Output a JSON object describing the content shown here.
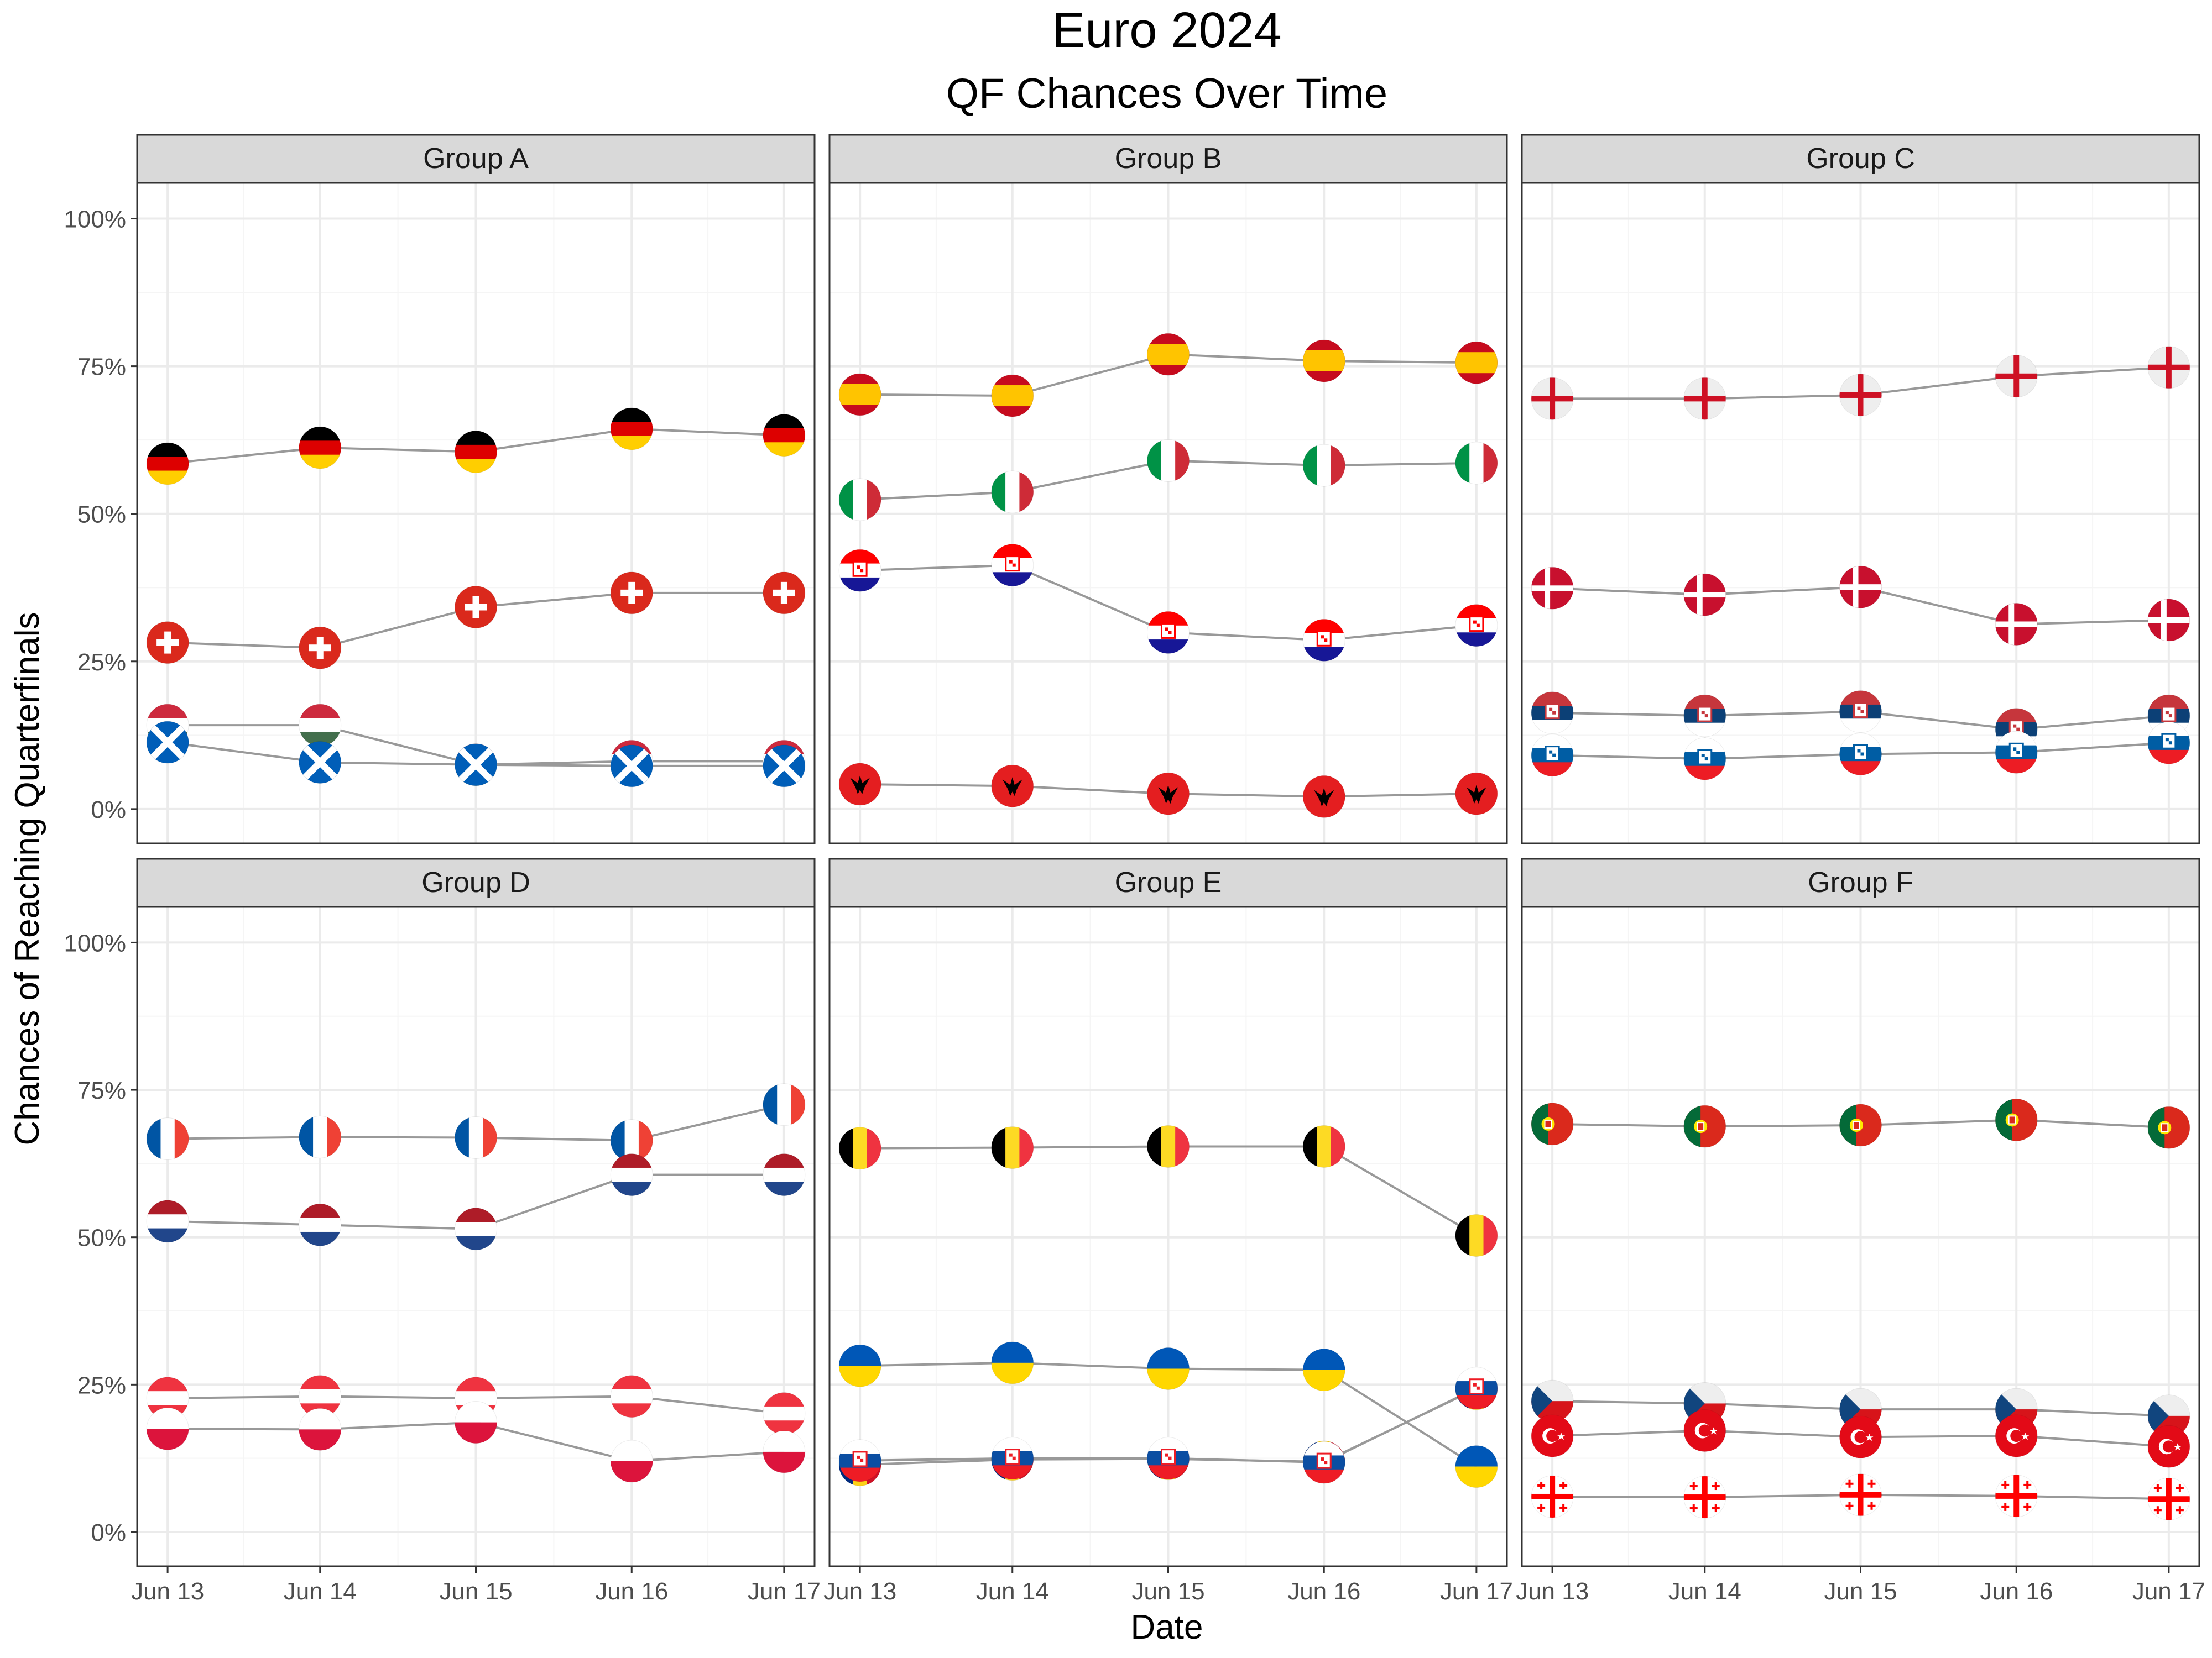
{
  "title": "Euro 2024",
  "subtitle": "QF Chances Over Time",
  "chart_data": {
    "type": "line",
    "xlabel": "Date",
    "ylabel": "Chances of Reaching Quarterfinals",
    "x_ticks": [
      "Jun 13",
      "Jun 14",
      "Jun 15",
      "Jun 16",
      "Jun 17"
    ],
    "y_ticks": [
      "0%",
      "25%",
      "50%",
      "75%",
      "100%"
    ],
    "ylim": [
      0,
      100
    ],
    "grid": true,
    "marker": "country flag",
    "panels": [
      {
        "name": "Group A",
        "series": [
          {
            "country": "Germany",
            "values": [
              58.5,
              61.2,
              60.5,
              64.4,
              63.3
            ]
          },
          {
            "country": "Switzerland",
            "values": [
              28.2,
              27.3,
              34.2,
              36.6,
              36.6
            ]
          },
          {
            "country": "Hungary",
            "values": [
              14.2,
              14.2,
              7.5,
              8.1,
              8.1
            ]
          },
          {
            "country": "Scotland",
            "values": [
              11.3,
              7.9,
              7.5,
              7.3,
              7.3
            ]
          }
        ]
      },
      {
        "name": "Group B",
        "series": [
          {
            "country": "Spain",
            "values": [
              70.2,
              70.0,
              77.0,
              75.9,
              75.6
            ]
          },
          {
            "country": "Italy",
            "values": [
              52.4,
              53.7,
              59.0,
              58.2,
              58.6
            ]
          },
          {
            "country": "Croatia",
            "values": [
              40.4,
              41.3,
              29.9,
              28.6,
              31.1
            ]
          },
          {
            "country": "Albania",
            "values": [
              4.2,
              3.9,
              2.6,
              2.1,
              2.6
            ]
          }
        ]
      },
      {
        "name": "Group C",
        "series": [
          {
            "country": "England",
            "values": [
              69.5,
              69.5,
              70.1,
              73.3,
              74.8
            ]
          },
          {
            "country": "Denmark",
            "values": [
              37.4,
              36.3,
              37.6,
              31.3,
              32.0
            ]
          },
          {
            "country": "Serbia",
            "values": [
              16.3,
              15.8,
              16.5,
              13.5,
              15.8
            ]
          },
          {
            "country": "Slovenia",
            "values": [
              9.1,
              8.5,
              9.3,
              9.6,
              11.2
            ]
          }
        ]
      },
      {
        "name": "Group D",
        "series": [
          {
            "country": "France",
            "values": [
              66.7,
              67.0,
              66.9,
              66.4,
              72.5
            ]
          },
          {
            "country": "Netherlands",
            "values": [
              52.7,
              52.1,
              51.4,
              60.6,
              60.6
            ]
          },
          {
            "country": "Austria",
            "values": [
              22.7,
              23.0,
              22.7,
              23.0,
              20.1
            ]
          },
          {
            "country": "Poland",
            "values": [
              17.5,
              17.4,
              18.6,
              12.0,
              13.6
            ]
          }
        ]
      },
      {
        "name": "Group E",
        "series": [
          {
            "country": "Belgium",
            "values": [
              65.1,
              65.2,
              65.4,
              65.4,
              50.3
            ]
          },
          {
            "country": "Ukraine",
            "values": [
              28.2,
              28.7,
              27.7,
              27.5,
              11.1
            ]
          },
          {
            "country": "Romania",
            "values": [
              11.4,
              12.3,
              12.4,
              11.9,
              24.3
            ]
          },
          {
            "country": "Slovakia",
            "values": [
              12.1,
              12.5,
              12.5,
              11.8,
              24.4
            ]
          }
        ]
      },
      {
        "name": "Group F",
        "series": [
          {
            "country": "Portugal",
            "values": [
              69.2,
              68.8,
              69.0,
              69.9,
              68.6
            ]
          },
          {
            "country": "Czechia",
            "values": [
              22.2,
              21.8,
              20.8,
              20.8,
              19.7
            ]
          },
          {
            "country": "Turkey",
            "values": [
              16.3,
              17.2,
              16.1,
              16.3,
              14.5
            ]
          },
          {
            "country": "Georgia",
            "values": [
              6.0,
              5.9,
              6.3,
              6.1,
              5.6
            ]
          }
        ]
      }
    ]
  },
  "colors": {
    "line": "#999999",
    "grid_major": "#ebebeb",
    "grid_minor": "#f5f5f5",
    "strip_fill": "#d9d9d9",
    "panel_border": "#333333",
    "tick_text": "#4d4d4d"
  }
}
